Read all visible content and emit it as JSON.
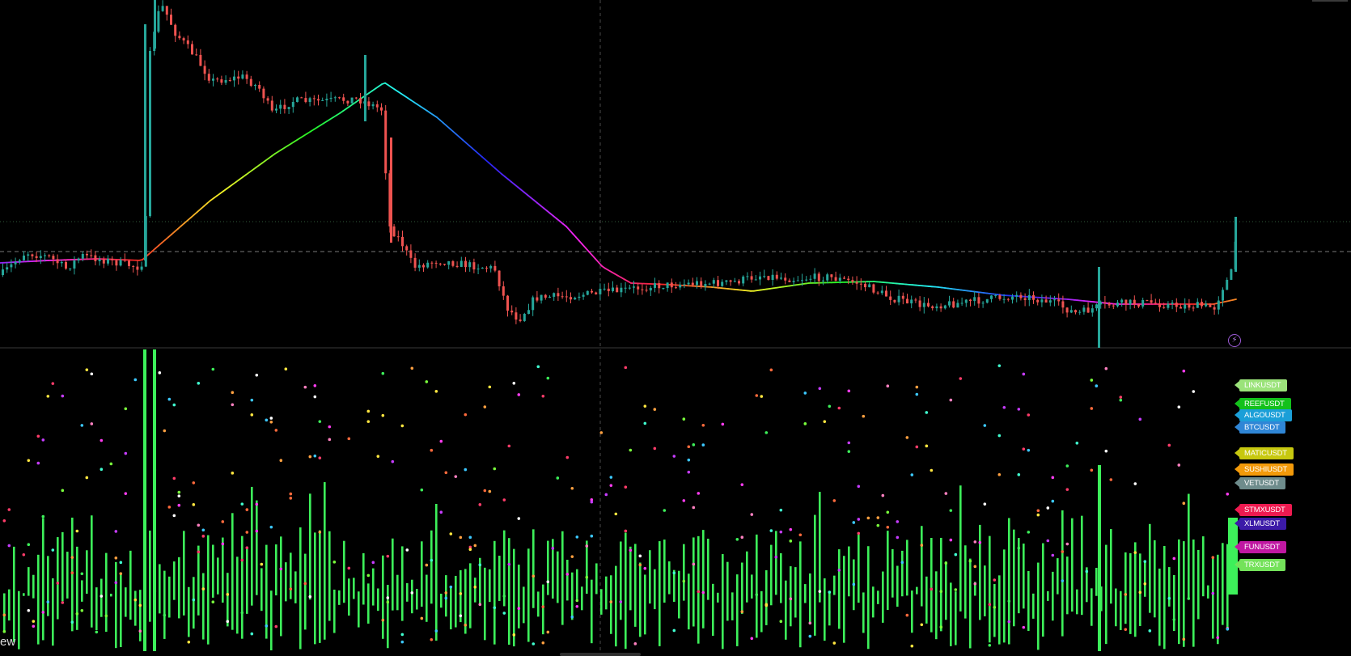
{
  "brand": {
    "text": "ew"
  },
  "tickers": [
    {
      "label": "LINKUSDT",
      "color": "#9be37a"
    },
    {
      "label": "REEFUSDT",
      "color": "#13c11b"
    },
    {
      "label": "ALGOUSDT",
      "color": "#1b9fd8"
    },
    {
      "label": "BTCUSDT",
      "color": "#2f86d6"
    },
    {
      "label": "MATICUSDT",
      "color": "#c7c80f"
    },
    {
      "label": "SUSHIUSDT",
      "color": "#f39a0a"
    },
    {
      "label": "VETUSDT",
      "color": "#6e8c8c"
    },
    {
      "label": "STMXUSDT",
      "color": "#ee1a50"
    },
    {
      "label": "XLMUSDT",
      "color": "#3c1aa8"
    },
    {
      "label": "FUNUSDT",
      "color": "#c018a2"
    },
    {
      "label": "TRXUSDT",
      "color": "#74e25a"
    }
  ],
  "icons": {
    "bolt": "lightning-bolt-icon",
    "bolt_glyph": "⚡"
  },
  "colors": {
    "background": "#000000",
    "candle_up": "#26a69a",
    "candle_down": "#ef5350",
    "volume_bar": "#3df05a",
    "grid": "#3a3a3a"
  }
}
